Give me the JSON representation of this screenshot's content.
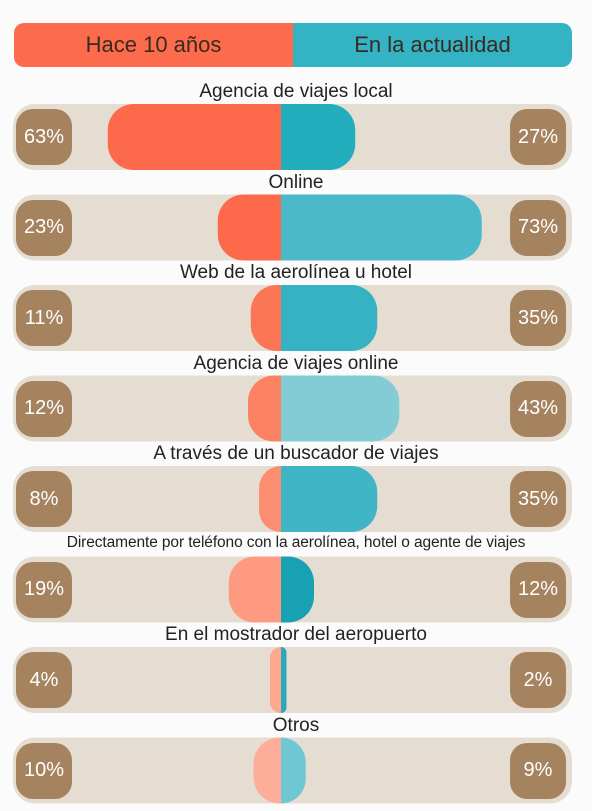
{
  "legend": {
    "left_label": "Hace 10 años",
    "right_label": "En la actualidad",
    "left_color": "#fd6b4d",
    "right_color": "#33b3c4"
  },
  "colors": {
    "track": "#e6ddd2",
    "badge": "#a5835f"
  },
  "chart_data": {
    "type": "bar",
    "orientation": "horizontal-diverging",
    "categories": [
      "Agencia de viajes local",
      "Online",
      "Web de la aerolínea u hotel",
      "Agencia de viajes online",
      "A través de un buscador de viajes",
      "Directamente por teléfono con la aerolínea, hotel o agente de viajes",
      "En el mostrador del aeropuerto",
      "Otros"
    ],
    "series": [
      {
        "name": "Hace 10 años",
        "values": [
          63,
          23,
          11,
          12,
          8,
          19,
          4,
          10
        ],
        "labels": [
          "63%",
          "23%",
          "11%",
          "12%",
          "8%",
          "19%",
          "4%",
          "10%"
        ],
        "colors": [
          "#fd6a4b",
          "#fd6a4b",
          "#fb7654",
          "#fb8262",
          "#fb8e70",
          "#fd9a80",
          "#fda88f",
          "#fdae98"
        ]
      },
      {
        "name": "En la actualidad",
        "values": [
          27,
          73,
          35,
          43,
          35,
          12,
          2,
          9
        ],
        "labels": [
          "27%",
          "73%",
          "35%",
          "43%",
          "35%",
          "12%",
          "2%",
          "9%"
        ],
        "colors": [
          "#23aebe",
          "#4bb9c9",
          "#36b2c4",
          "#83ccd6",
          "#3fb5c6",
          "#18a1b3",
          "#2aa9ba",
          "#6fc7d3"
        ]
      }
    ]
  }
}
